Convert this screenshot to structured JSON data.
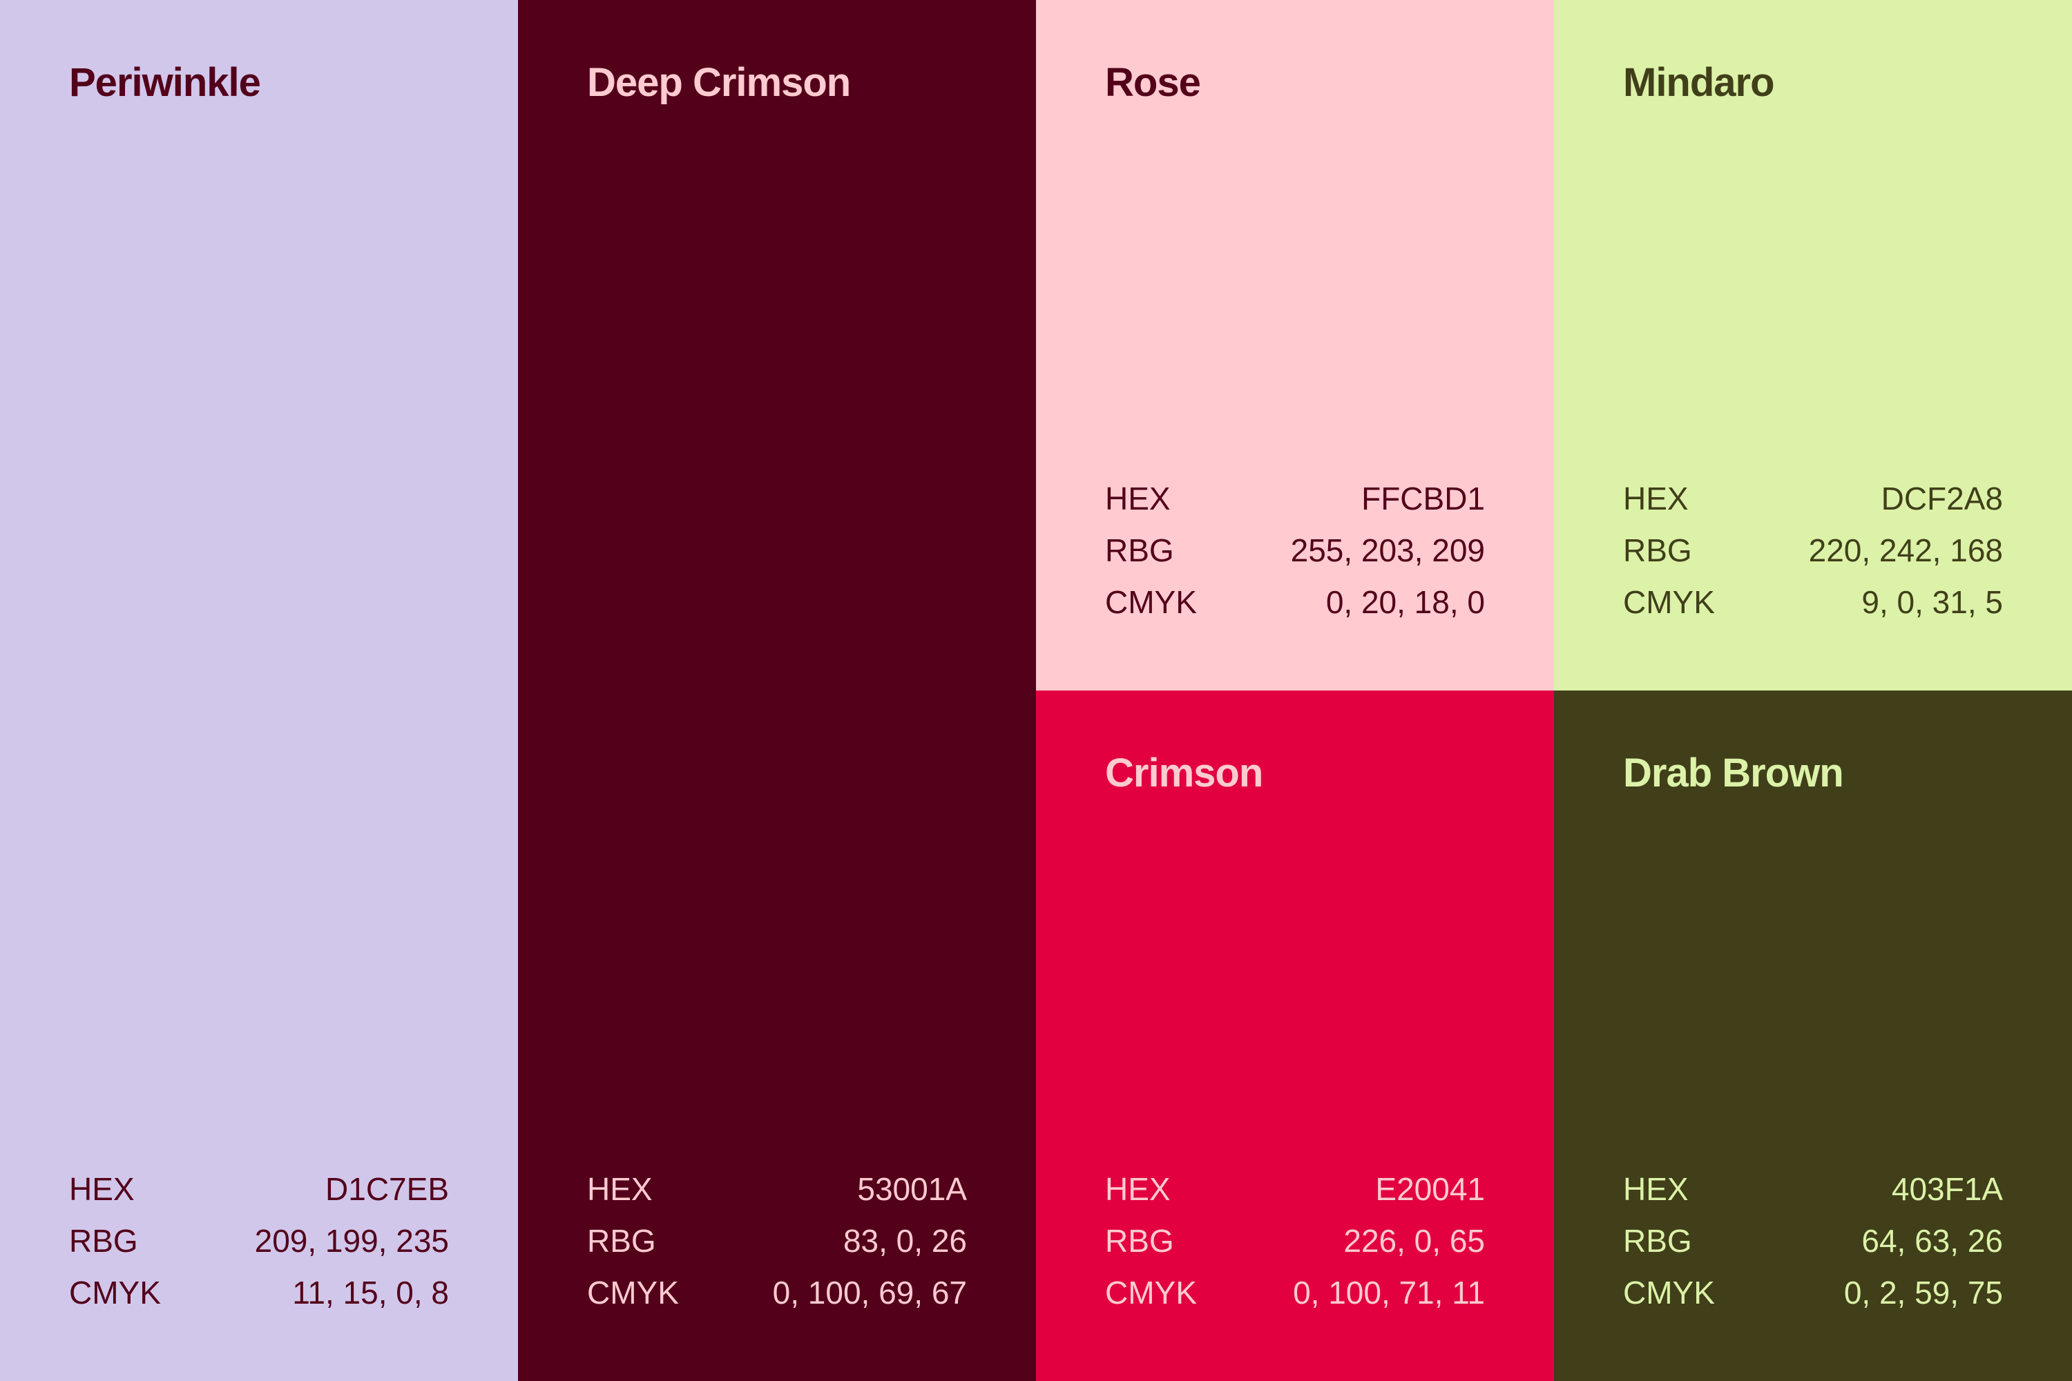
{
  "swatches": [
    {
      "id": "periwinkle",
      "name": "Periwinkle",
      "background": "#D1C7EB",
      "text_color": "#53001A",
      "specs": [
        {
          "label": "HEX",
          "value": "D1C7EB"
        },
        {
          "label": "RBG",
          "value": "209, 199, 235"
        },
        {
          "label": "CMYK",
          "value": "11, 15, 0, 8"
        }
      ]
    },
    {
      "id": "deep-crimson",
      "name": "Deep Crimson",
      "background": "#53001A",
      "text_color": "#FFCBD1",
      "specs": [
        {
          "label": "HEX",
          "value": "53001A"
        },
        {
          "label": "RBG",
          "value": "83, 0, 26"
        },
        {
          "label": "CMYK",
          "value": "0, 100, 69, 67"
        }
      ]
    },
    {
      "id": "rose",
      "name": "Rose",
      "background": "#FFCBD1",
      "text_color": "#53001A",
      "specs": [
        {
          "label": "HEX",
          "value": "FFCBD1"
        },
        {
          "label": "RBG",
          "value": "255, 203, 209"
        },
        {
          "label": "CMYK",
          "value": "0, 20, 18, 0"
        }
      ]
    },
    {
      "id": "mindaro",
      "name": "Mindaro",
      "background": "#DCF2A8",
      "text_color": "#403F1A",
      "specs": [
        {
          "label": "HEX",
          "value": "DCF2A8"
        },
        {
          "label": "RBG",
          "value": "220, 242, 168"
        },
        {
          "label": "CMYK",
          "value": "9, 0, 31, 5"
        }
      ]
    },
    {
      "id": "crimson",
      "name": "Crimson",
      "background": "#E20041",
      "text_color": "#FFCBD1",
      "specs": [
        {
          "label": "HEX",
          "value": "E20041"
        },
        {
          "label": "RBG",
          "value": "226, 0, 65"
        },
        {
          "label": "CMYK",
          "value": "0, 100, 71, 11"
        }
      ]
    },
    {
      "id": "drab-brown",
      "name": "Drab Brown",
      "background": "#403F1A",
      "text_color": "#DCF2A8",
      "specs": [
        {
          "label": "HEX",
          "value": "403F1A"
        },
        {
          "label": "RBG",
          "value": "64, 63, 26"
        },
        {
          "label": "CMYK",
          "value": "0, 2, 59, 75"
        }
      ]
    }
  ]
}
